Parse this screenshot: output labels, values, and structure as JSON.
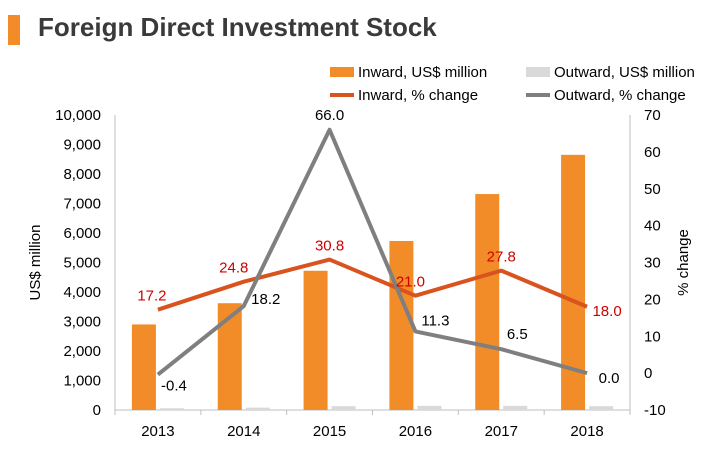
{
  "title": "Foreign Direct Investment Stock",
  "colors": {
    "accent": "#F28C28",
    "inward_bar": "#F28C28",
    "outward_bar": "#D9D9D9",
    "inward_line": "#D9531E",
    "outward_line": "#7F7F7F",
    "inward_label": "#D00000",
    "outward_label": "#000000"
  },
  "chart_data": {
    "type": "bar",
    "categories": [
      "2013",
      "2014",
      "2015",
      "2016",
      "2017",
      "2018"
    ],
    "series": [
      {
        "name": "Inward, US$ million",
        "kind": "bar",
        "axis": "left",
        "values": [
          2900,
          3620,
          4720,
          5730,
          7320,
          8650
        ]
      },
      {
        "name": "Outward, US$ million",
        "kind": "bar",
        "axis": "left",
        "values": [
          60,
          80,
          130,
          140,
          140,
          130
        ]
      },
      {
        "name": "Inward, % change",
        "kind": "line",
        "axis": "right",
        "values": [
          17.2,
          24.8,
          30.8,
          21.0,
          27.8,
          18.0
        ],
        "labels": [
          "17.2",
          "24.8",
          "30.8",
          "21.0",
          "27.8",
          "18.0"
        ]
      },
      {
        "name": "Outward, % change",
        "kind": "line",
        "axis": "right",
        "values": [
          -0.4,
          18.2,
          66.0,
          11.3,
          6.5,
          0.0
        ],
        "labels": [
          "-0.4",
          "18.2",
          "66.0",
          "11.3",
          "6.5",
          "0.0"
        ]
      }
    ],
    "ylabel": "US$ million",
    "y2label": "% change",
    "ylim": [
      0,
      10000
    ],
    "y2lim": [
      -10,
      70
    ],
    "yticks": [
      0,
      1000,
      2000,
      3000,
      4000,
      5000,
      6000,
      7000,
      8000,
      9000,
      10000
    ],
    "ytick_labels": [
      "0",
      "1,000",
      "2,000",
      "3,000",
      "4,000",
      "5,000",
      "6,000",
      "7,000",
      "8,000",
      "9,000",
      "10,000"
    ],
    "y2ticks": [
      -10,
      0,
      10,
      20,
      30,
      40,
      50,
      60,
      70
    ],
    "y2tick_labels": [
      "-10",
      "0",
      "10",
      "20",
      "30",
      "40",
      "50",
      "60",
      "70"
    ],
    "legend_position": "top",
    "grid": false
  }
}
